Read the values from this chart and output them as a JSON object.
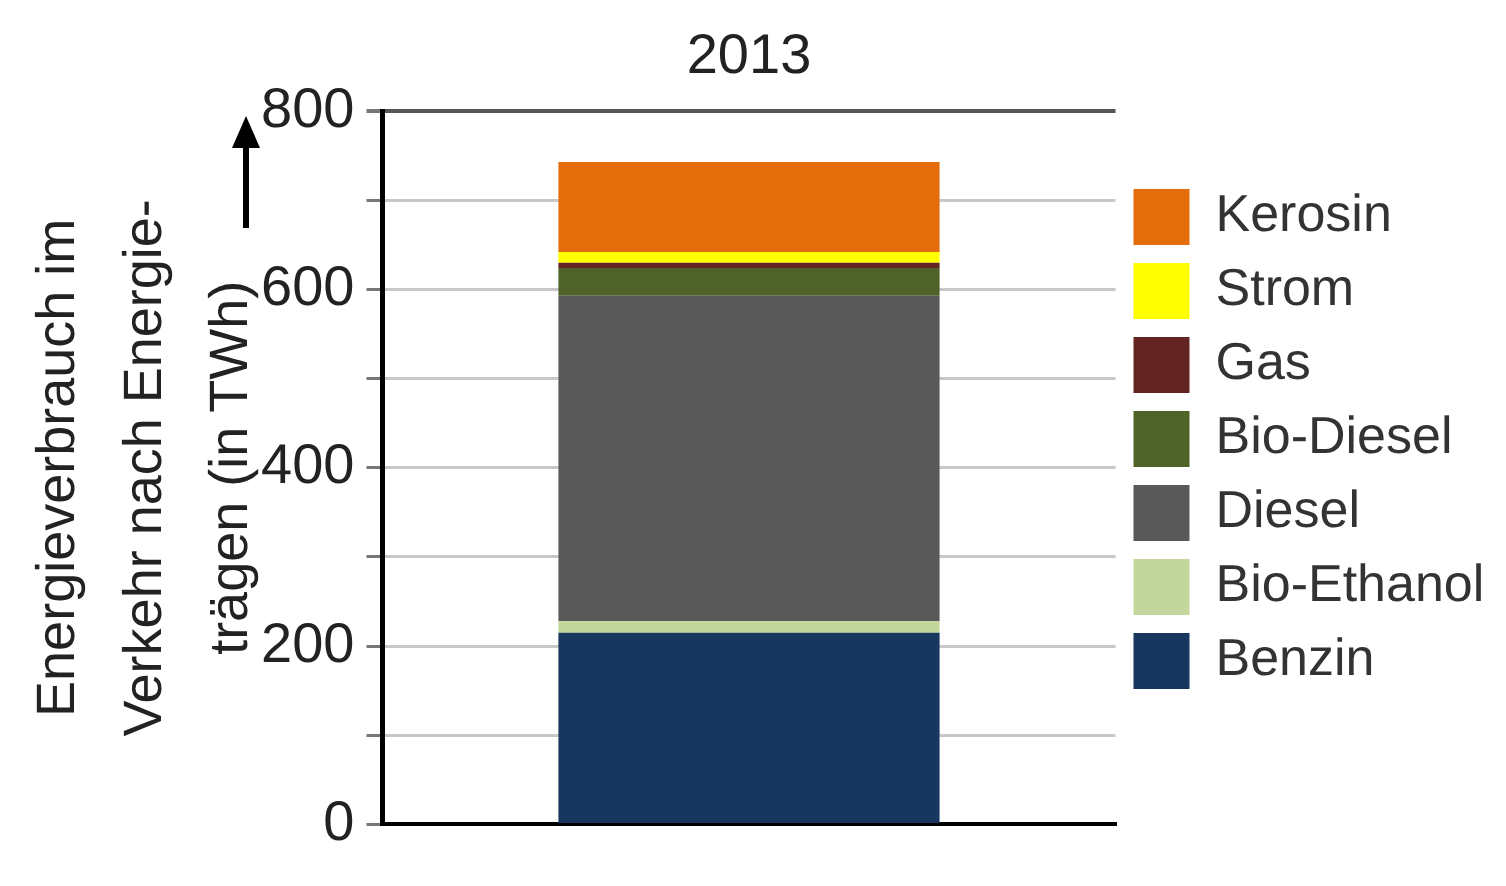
{
  "chart_data": {
    "type": "bar",
    "title": "2013",
    "ylabel": "Energieverbrauch im\nVerkehr nach Energie-\nträgen (in TWh)",
    "categories": [
      null
    ],
    "stacked": true,
    "series": [
      {
        "name": "Benzin",
        "color": "#17375e",
        "values": [
          215
        ]
      },
      {
        "name": "Bio-Ethanol",
        "color": "#c3d69b",
        "values": [
          13
        ]
      },
      {
        "name": "Diesel",
        "color": "#595959",
        "values": [
          365
        ]
      },
      {
        "name": "Bio-Diesel",
        "color": "#4f6228",
        "values": [
          31
        ]
      },
      {
        "name": "Gas",
        "color": "#632523",
        "values": [
          6
        ]
      },
      {
        "name": "Strom",
        "color": "#ffff00",
        "values": [
          12
        ]
      },
      {
        "name": "Kerosin",
        "color": "#e46c0a",
        "values": [
          101
        ]
      }
    ],
    "ylim": [
      0,
      800
    ],
    "yticks": [
      0,
      {
        "value": 100,
        "label": null
      },
      200,
      {
        "value": 300,
        "label": null
      },
      400,
      {
        "value": 500,
        "label": null
      },
      600,
      {
        "value": 700,
        "label": null
      },
      800
    ],
    "grid": "y",
    "legend": "right"
  }
}
